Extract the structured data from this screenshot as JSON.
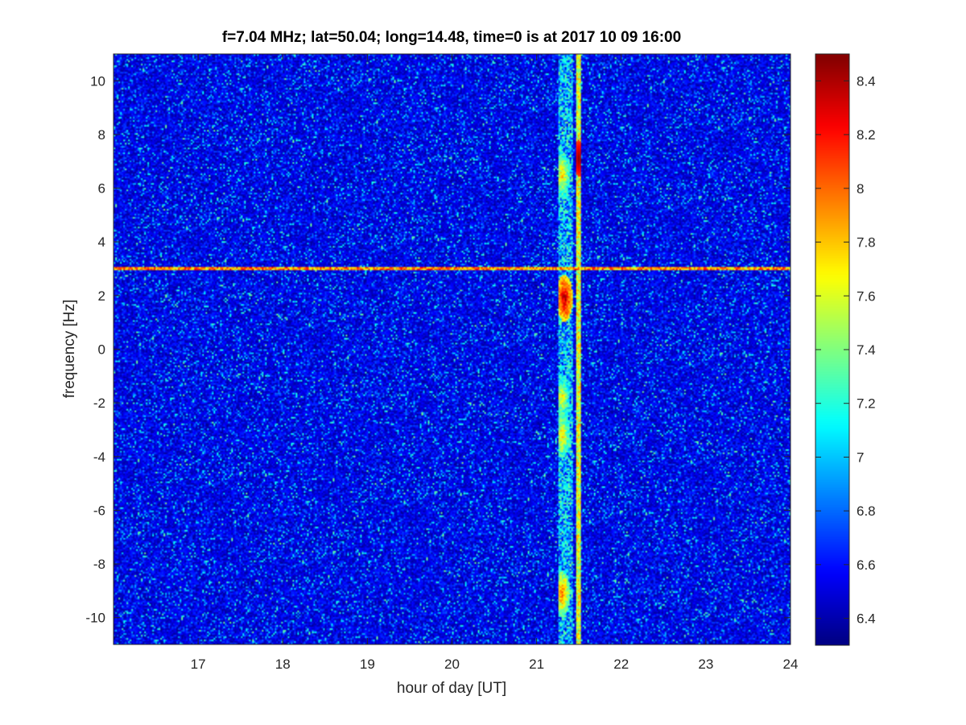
{
  "chart_data": {
    "type": "heatmap",
    "title": "f=7.04 MHz;  lat=50.04; long=14.48, time=0 is at 2017 10 09 16:00",
    "xlabel": "hour of day [UT]",
    "ylabel": "frequency [Hz]",
    "xlim": [
      16,
      24
    ],
    "ylim": [
      -11,
      11
    ],
    "x_ticks": [
      17,
      18,
      19,
      20,
      21,
      22,
      23,
      24
    ],
    "x_tick_labels": [
      "17",
      "18",
      "19",
      "20",
      "21",
      "22",
      "23",
      "24"
    ],
    "y_ticks": [
      -10,
      -8,
      -6,
      -4,
      -2,
      0,
      2,
      4,
      6,
      8,
      10
    ],
    "y_tick_labels": [
      "-10",
      "-8",
      "-6",
      "-4",
      "-2",
      "0",
      "2",
      "4",
      "6",
      "8",
      "10"
    ],
    "colorbar": {
      "colormap": "jet",
      "clim": [
        6.3,
        8.5
      ],
      "ticks": [
        6.4,
        6.6,
        6.8,
        7,
        7.2,
        7.4,
        7.6,
        7.8,
        8,
        8.2,
        8.4
      ],
      "tick_labels": [
        "6.4",
        "6.6",
        "6.8",
        "7",
        "7.2",
        "7.4",
        "7.6",
        "7.8",
        "8",
        "8.2",
        "8.4"
      ]
    },
    "background_level": 6.5,
    "features": [
      {
        "kind": "horizontal_line",
        "frequency": 3.0,
        "x_range": [
          16,
          24
        ],
        "level": 7.9
      },
      {
        "kind": "vertical_band",
        "time_range": [
          21.25,
          21.42
        ],
        "level": 7.2,
        "hotspots": [
          {
            "time": 21.33,
            "freq": 1.9,
            "level": 8.4
          },
          {
            "time": 21.3,
            "freq": 6.5,
            "level": 7.8
          },
          {
            "time": 21.3,
            "freq": -1.8,
            "level": 7.7
          },
          {
            "time": 21.3,
            "freq": -3.2,
            "level": 7.8
          },
          {
            "time": 21.3,
            "freq": -9.1,
            "level": 8.0
          }
        ]
      },
      {
        "kind": "vertical_line",
        "time": 21.5,
        "level": 7.6,
        "hotspots": [
          {
            "time": 21.5,
            "freq": 7.1,
            "level": 8.5
          }
        ]
      }
    ]
  }
}
